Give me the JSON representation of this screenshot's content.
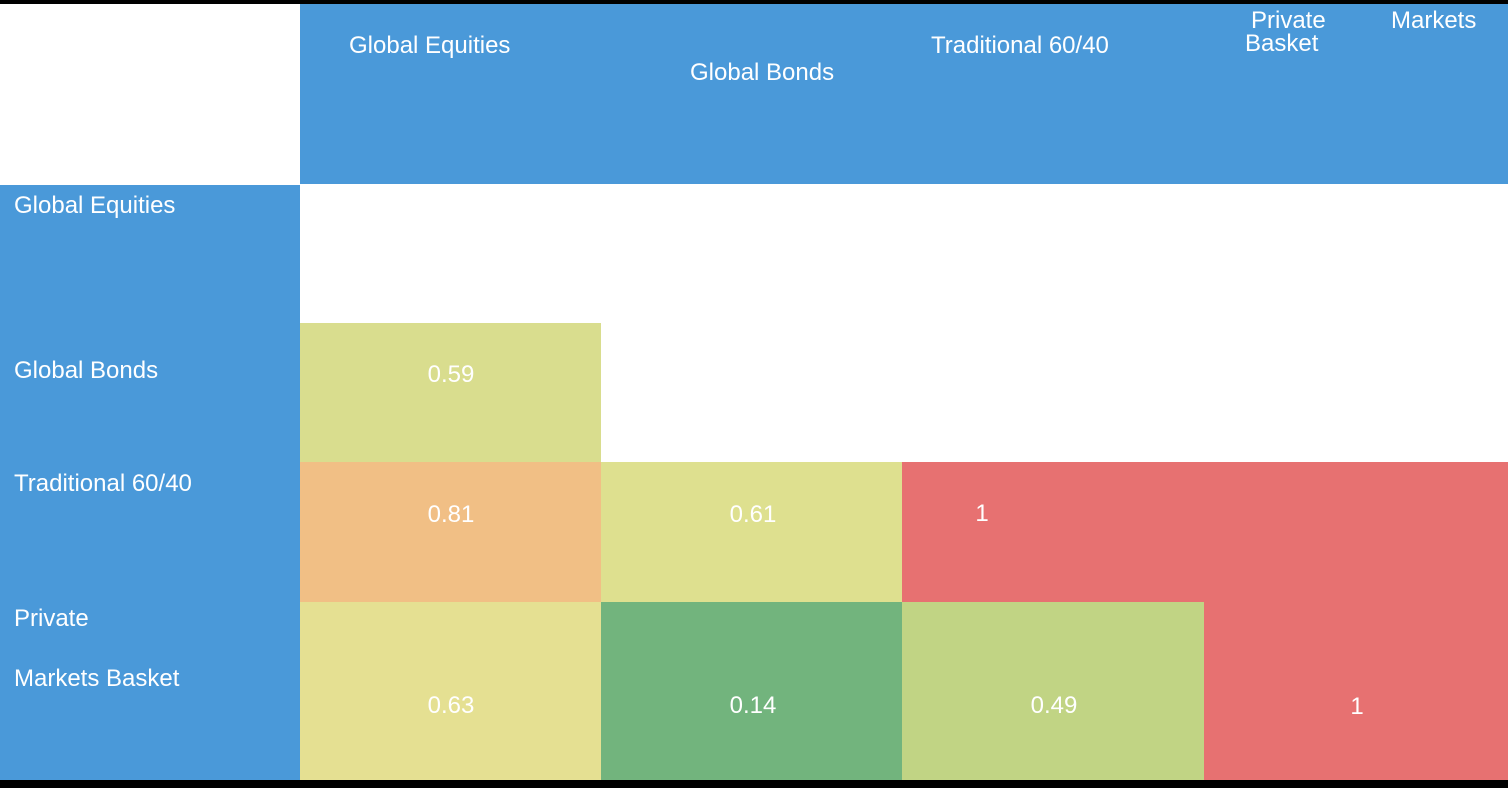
{
  "colors": {
    "header_blue": "#4a99d9",
    "text_white": "#ffffff",
    "border_black": "#000000",
    "corr_high_red": "#e77171",
    "corr_low_green": "#72b47d"
  },
  "header": {
    "global_equities": "Global Equities",
    "global_bonds": "Global Bonds",
    "traditional_6040": "Traditional 60/40",
    "private_word": "Private",
    "markets_word": "Markets",
    "basket_word": "Basket"
  },
  "row_labels": {
    "global_equities": "Global Equities",
    "global_bonds": "Global Bonds",
    "traditional_6040": "Traditional 60/40",
    "private_markets_line1": "Private",
    "private_markets_line2": "Markets Basket"
  },
  "cells": {
    "bonds_equities": {
      "value": "0.59",
      "color": "#d9dd8e"
    },
    "t6040_equities": {
      "value": "0.81",
      "color": "#f1bf85"
    },
    "t6040_bonds": {
      "value": "0.61",
      "color": "#dee08f"
    },
    "t6040_t6040": {
      "value": "1",
      "color": "#e77171"
    },
    "pm_equities": {
      "value": "0.63",
      "color": "#e5e092"
    },
    "pm_bonds": {
      "value": "0.14",
      "color": "#72b47d"
    },
    "pm_t6040": {
      "value": "0.49",
      "color": "#c1d484"
    },
    "pm_pm": {
      "value": "1",
      "color": "#e77171"
    }
  },
  "chart_data": {
    "type": "heatmap",
    "title": "",
    "rows": [
      "Global Equities",
      "Global Bonds",
      "Traditional 60/40",
      "Private Markets Basket"
    ],
    "columns": [
      "Global Equities",
      "Global Bonds",
      "Traditional 60/40",
      "Private Markets Basket"
    ],
    "values": [
      [
        null,
        null,
        null,
        null
      ],
      [
        0.59,
        null,
        null,
        null
      ],
      [
        0.81,
        0.61,
        1,
        null
      ],
      [
        0.63,
        0.14,
        0.49,
        1
      ]
    ],
    "layout_hints": {
      "shape": "lower-triangular correlation matrix",
      "diagonal_top_left_cell_empty": true,
      "color_scale": "green (low) -> yellow -> orange -> red (high)",
      "header_background": "#4a99d9",
      "value_text_color": "#ffffff"
    }
  }
}
